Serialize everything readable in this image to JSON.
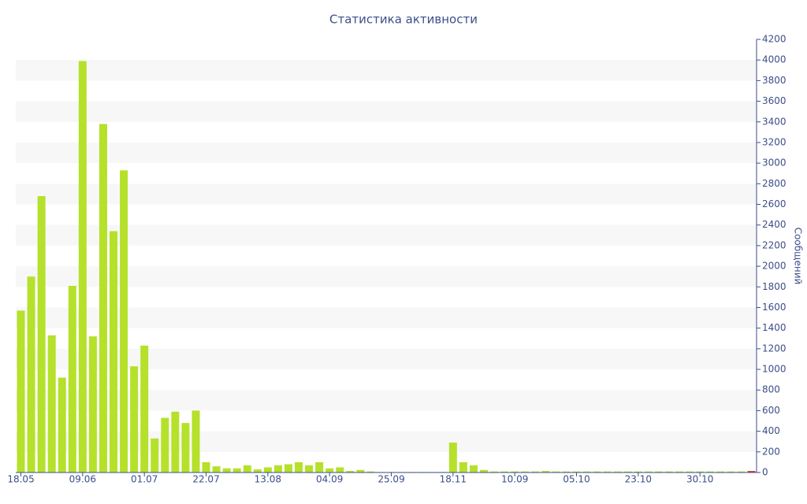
{
  "chart_data": {
    "type": "bar",
    "title": "Статистика активности",
    "y_axis_label": "Сообщений",
    "categories": [
      "18.05",
      null,
      null,
      null,
      null,
      null,
      "09.06",
      null,
      null,
      null,
      null,
      null,
      "01.07",
      null,
      null,
      null,
      null,
      null,
      "22.07",
      null,
      null,
      null,
      null,
      null,
      "13.08",
      null,
      null,
      null,
      null,
      null,
      "04.09",
      null,
      null,
      null,
      null,
      null,
      "25.09",
      null,
      null,
      null,
      null,
      null,
      "18.11",
      null,
      null,
      null,
      null,
      null,
      "10.09",
      null,
      null,
      null,
      null,
      null,
      "05.10",
      null,
      null,
      null,
      null,
      null,
      "23.10",
      null,
      null,
      null,
      null,
      null,
      "30.10",
      null,
      null,
      null,
      null,
      null
    ],
    "values": [
      1570,
      1900,
      2680,
      1330,
      920,
      1810,
      3990,
      1320,
      3380,
      2340,
      2930,
      1030,
      1230,
      330,
      530,
      590,
      480,
      600,
      100,
      60,
      40,
      40,
      70,
      30,
      50,
      70,
      80,
      100,
      70,
      100,
      40,
      50,
      15,
      25,
      10,
      5,
      5,
      5,
      5,
      5,
      5,
      5,
      290,
      100,
      70,
      25,
      10,
      10,
      10,
      10,
      10,
      15,
      10,
      10,
      10,
      10,
      10,
      10,
      10,
      10,
      10,
      10,
      10,
      10,
      10,
      10,
      10,
      10,
      10,
      10,
      10,
      15
    ],
    "color": "#b5e12b",
    "colors": [
      "#b5e12b",
      "#b5e12b",
      "#b5e12b",
      "#b5e12b",
      "#b5e12b",
      "#b5e12b",
      "#b5e12b",
      "#b5e12b",
      "#b5e12b",
      "#b5e12b",
      "#b5e12b",
      "#b5e12b",
      "#b5e12b",
      "#b5e12b",
      "#b5e12b",
      "#b5e12b",
      "#b5e12b",
      "#b5e12b",
      "#b5e12b",
      "#b5e12b",
      "#b5e12b",
      "#b5e12b",
      "#b5e12b",
      "#b5e12b",
      "#b5e12b",
      "#b5e12b",
      "#b5e12b",
      "#b5e12b",
      "#b5e12b",
      "#b5e12b",
      "#b5e12b",
      "#b5e12b",
      "#b5e12b",
      "#b5e12b",
      "#b5e12b",
      "#b5e12b",
      "#b5e12b",
      "#b5e12b",
      "#b5e12b",
      "#b5e12b",
      "#b5e12b",
      "#b5e12b",
      "#b5e12b",
      "#b5e12b",
      "#b5e12b",
      "#b5e12b",
      "#b5e12b",
      "#b5e12b",
      "#b5e12b",
      "#b5e12b",
      "#b5e12b",
      "#b5e12b",
      "#b5e12b",
      "#b5e12b",
      "#b5e12b",
      "#b5e12b",
      "#b5e12b",
      "#b5e12b",
      "#b5e12b",
      "#b5e12b",
      "#b5e12b",
      "#b5e12b",
      "#b5e12b",
      "#b5e12b",
      "#b5e12b",
      "#b5e12b",
      "#b5e12b",
      "#b5e12b",
      "#b5e12b",
      "#b5e12b",
      "#b5e12b",
      "#e03c31"
    ],
    "ylim": [
      0,
      4200
    ],
    "yticks": [
      0,
      200,
      400,
      600,
      800,
      1000,
      1200,
      1400,
      1600,
      1800,
      2000,
      2200,
      2400,
      2600,
      2800,
      3000,
      3200,
      3400,
      3600,
      3800,
      4000,
      4200
    ],
    "y_axis_side": "right",
    "grid": "bands"
  }
}
